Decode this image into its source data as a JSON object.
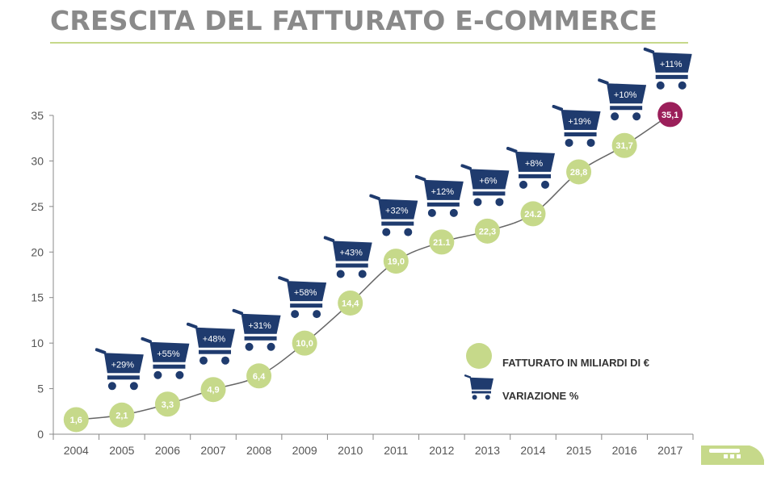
{
  "page": {
    "title": "CRESCITA DEL FATTURATO E-COMMERCE"
  },
  "colors": {
    "title": "#8a8a8a",
    "accent_green": "#c6d98a",
    "point": "#c6d98a",
    "highlight_point": "#9b1f5a",
    "cart": "#1f3b6e",
    "line": "#666666",
    "axis": "#888888"
  },
  "chart_data": {
    "type": "line",
    "categories": [
      "2004",
      "2005",
      "2006",
      "2007",
      "2008",
      "2009",
      "2010",
      "2011",
      "2012",
      "2013",
      "2014",
      "2015",
      "2016",
      "2017"
    ],
    "series": [
      {
        "name": "FATTURATO IN MILIARDI DI €",
        "values": [
          1.6,
          2.1,
          3.3,
          4.9,
          6.4,
          10.0,
          14.4,
          19.0,
          21.1,
          22.3,
          24.2,
          28.8,
          31.7,
          35.1
        ],
        "value_labels": [
          "1,6",
          "2,1",
          "3,3",
          "4,9",
          "6,4",
          "10,0",
          "14,4",
          "19,0",
          "21.1",
          "22,3",
          "24.2",
          "28,8",
          "31,7",
          "35,1"
        ],
        "highlight_index": 13
      },
      {
        "name": "VARIAZIONE %",
        "labels": [
          "+29%",
          "+55%",
          "+48%",
          "+31%",
          "+58%",
          "+43%",
          "+32%",
          "+12%",
          "+6%",
          "+8%",
          "+19%",
          "+10%",
          "+11%"
        ],
        "start_index": 1
      }
    ],
    "y_ticks": [
      0,
      5,
      10,
      15,
      20,
      25,
      30,
      35
    ],
    "ylim": [
      0,
      35
    ],
    "grid": false,
    "legend": {
      "placement": "bottom-right",
      "items": [
        {
          "icon": "circle-marker",
          "label": "FATTURATO IN MILIARDI DI €"
        },
        {
          "icon": "cart-icon",
          "label": "VARIAZIONE %"
        }
      ]
    }
  },
  "decor": {
    "train_icon": "train-icon"
  }
}
